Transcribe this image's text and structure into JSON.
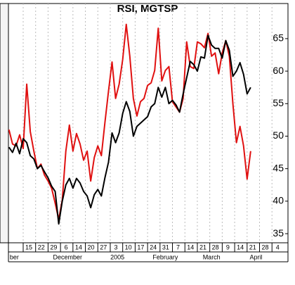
{
  "chart_data": {
    "type": "line",
    "title": "RSI, MGTSP",
    "x": [
      -8,
      -6,
      -4,
      -2,
      0,
      2,
      4,
      6,
      8,
      10,
      12,
      14,
      16,
      18,
      20,
      22,
      24,
      26,
      28,
      30,
      32,
      34,
      36,
      38,
      40,
      42,
      44,
      46,
      48,
      50,
      52,
      54,
      56,
      58,
      60,
      62,
      64,
      66,
      68,
      70,
      72,
      74,
      76,
      78,
      80,
      82,
      84,
      86,
      88,
      90,
      92,
      94,
      96,
      98,
      100,
      102,
      104,
      106,
      108,
      110,
      112,
      114,
      116,
      118,
      120,
      122,
      124,
      126,
      128
    ],
    "series": [
      {
        "color": "#e01010",
        "values": [
          51.0,
          48.8,
          48.5,
          50.2,
          48.1,
          58.0,
          50.7,
          47.7,
          45.0,
          45.7,
          44.0,
          43.1,
          42.0,
          39.7,
          37.2,
          40.2,
          47.7,
          51.7,
          47.7,
          50.4,
          48.8,
          46.3,
          47.7,
          43.1,
          46.7,
          48.5,
          47.0,
          52.1,
          56.9,
          61.4,
          55.8,
          58.0,
          61.8,
          67.2,
          62.3,
          55.8,
          53.1,
          55.3,
          55.8,
          57.8,
          58.2,
          60.1,
          66.6,
          58.5,
          60.1,
          60.7,
          55.3,
          54.5,
          53.7,
          55.8,
          64.5,
          60.7,
          60.4,
          64.5,
          64.2,
          63.6,
          65.8,
          62.3,
          62.8,
          59.6,
          62.8,
          64.7,
          62.3,
          55.0,
          49.0,
          51.5,
          48.5,
          43.4,
          47.7
        ]
      },
      {
        "color": "#000000",
        "values": [
          48.3,
          47.5,
          48.9,
          47.3,
          49.6,
          49.0,
          47.0,
          46.5,
          45.0,
          45.5,
          44.5,
          43.6,
          42.3,
          41.5,
          36.5,
          40.0,
          42.5,
          43.5,
          42.0,
          43.5,
          42.8,
          41.5,
          40.8,
          39.0,
          41.0,
          41.8,
          40.8,
          43.6,
          46.0,
          50.5,
          49.0,
          50.5,
          53.5,
          55.3,
          53.8,
          50.0,
          51.5,
          52.0,
          52.5,
          53.0,
          54.5,
          55.0,
          57.5,
          56.0,
          57.5,
          55.0,
          55.5,
          54.8,
          53.7,
          56.5,
          59.0,
          61.5,
          61.0,
          60.0,
          62.2,
          62.0,
          65.5,
          64.0,
          63.5,
          63.5,
          62.0,
          64.7,
          63.2,
          59.2,
          60.0,
          61.3,
          59.5,
          56.5,
          57.5
        ]
      }
    ],
    "xlim": [
      -8.3,
      149
    ],
    "xticks": [
      {
        "value": 0,
        "label": "15"
      },
      {
        "value": 7,
        "label": "22"
      },
      {
        "value": 14,
        "label": "29"
      },
      {
        "value": 21,
        "label": "6"
      },
      {
        "value": 28,
        "label": "14"
      },
      {
        "value": 35,
        "label": "20"
      },
      {
        "value": 42,
        "label": "27"
      },
      {
        "value": 49,
        "label": "3"
      },
      {
        "value": 56,
        "label": "10"
      },
      {
        "value": 63,
        "label": "17"
      },
      {
        "value": 70,
        "label": "24"
      },
      {
        "value": 77,
        "label": "31"
      },
      {
        "value": 84,
        "label": "7"
      },
      {
        "value": 91,
        "label": "14"
      },
      {
        "value": 98,
        "label": "21"
      },
      {
        "value": 105,
        "label": "28"
      },
      {
        "value": 112,
        "label": "9"
      },
      {
        "value": 119,
        "label": "14"
      },
      {
        "value": 126,
        "label": "21"
      },
      {
        "value": 133,
        "label": "28"
      },
      {
        "value": 140,
        "label": "4"
      }
    ],
    "month_labels": [
      {
        "value": -5,
        "label": "ber"
      },
      {
        "value": 25,
        "label": "December"
      },
      {
        "value": 53,
        "label": "2005"
      },
      {
        "value": 80,
        "label": "February"
      },
      {
        "value": 106,
        "label": "March"
      },
      {
        "value": 131,
        "label": "April"
      }
    ],
    "ylim": [
      33.6,
      70.4
    ],
    "yticks": [
      35,
      40,
      45,
      50,
      55,
      60,
      65
    ],
    "grid": true
  }
}
